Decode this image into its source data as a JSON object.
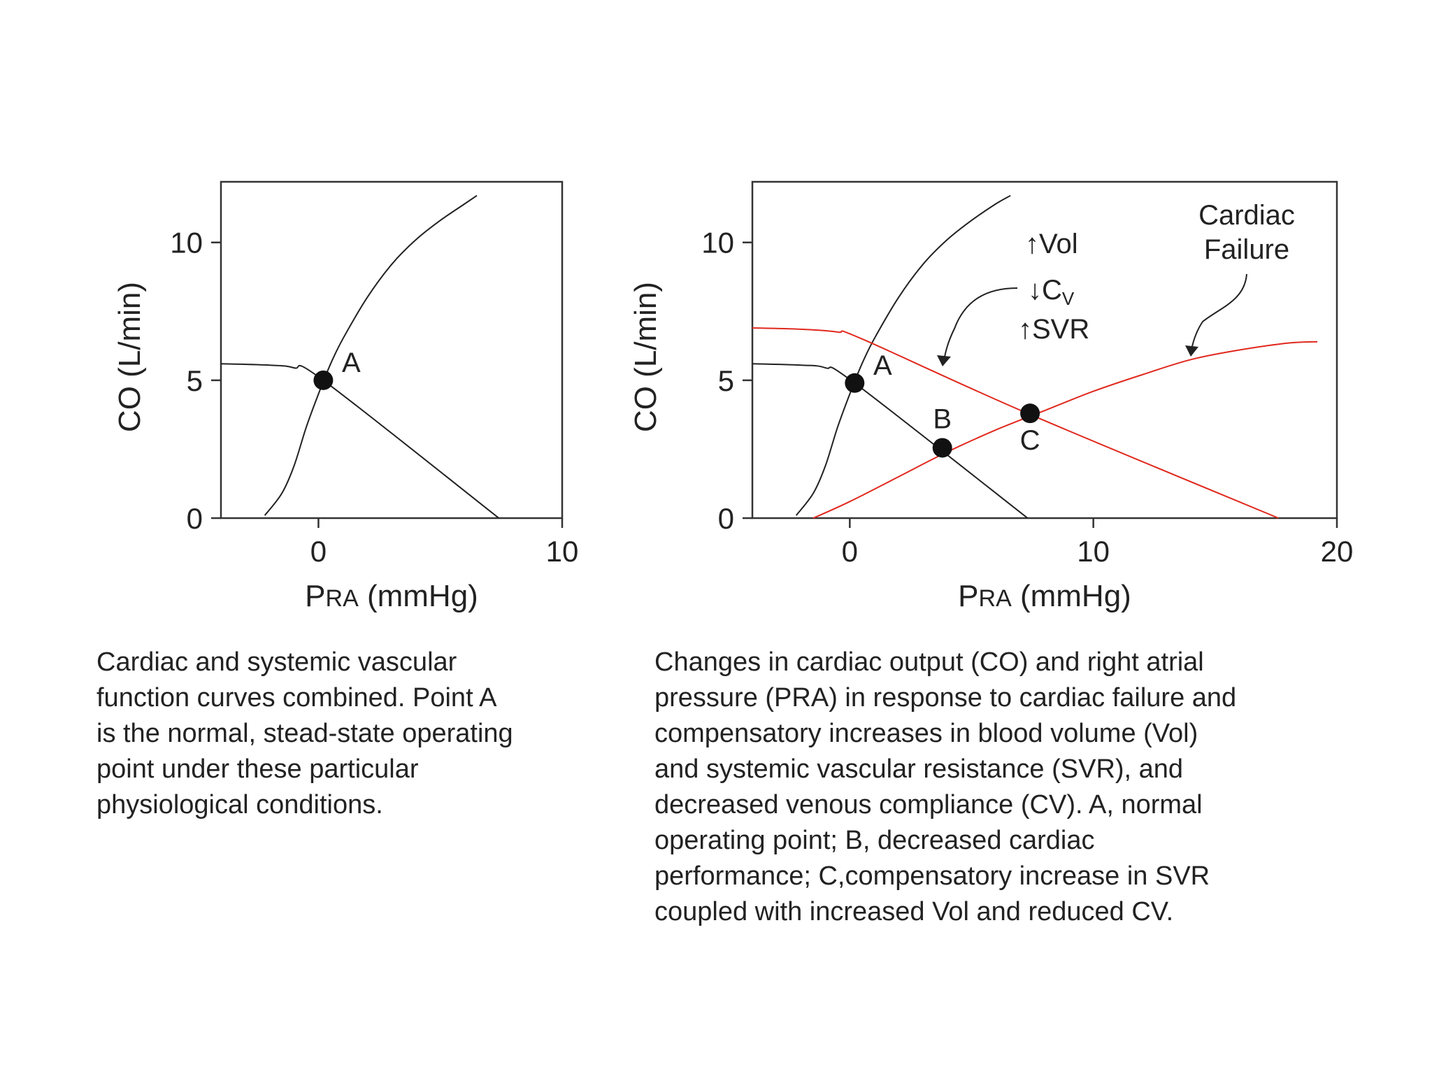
{
  "chart_data": [
    {
      "type": "line",
      "xlabel": "PRA (mmHg)",
      "ylabel": "CO (L/min)",
      "xlim": [
        -4,
        10
      ],
      "ylim": [
        0,
        12.2
      ],
      "xticks": [
        0,
        10
      ],
      "yticks": [
        0,
        5,
        10
      ],
      "grid": false,
      "series": [
        {
          "key": "cardiac",
          "color": "#222222",
          "x": [
            -2.2,
            -1.5,
            -1.0,
            -0.5,
            0.0,
            0.5,
            1.0,
            2.0,
            3.0,
            4.0,
            5.0,
            6.0,
            6.5
          ],
          "y": [
            0.1,
            0.9,
            1.9,
            3.3,
            4.5,
            5.6,
            6.5,
            8.0,
            9.2,
            10.1,
            10.8,
            11.4,
            11.7
          ]
        },
        {
          "key": "vascular",
          "color": "#222222",
          "x": [
            -4,
            -2,
            -1,
            0.2,
            7.4
          ],
          "y": [
            5.6,
            5.55,
            5.45,
            5.0,
            0
          ]
        }
      ],
      "points": [
        {
          "label": "A",
          "x": 0.2,
          "y": 5.0
        }
      ]
    },
    {
      "type": "line",
      "xlabel": "PRA (mmHg)",
      "ylabel": "CO (L/min)",
      "xlim": [
        -4,
        20
      ],
      "ylim": [
        0,
        12.2
      ],
      "xticks": [
        0,
        10,
        20
      ],
      "yticks": [
        0,
        5,
        10
      ],
      "grid": false,
      "series": [
        {
          "key": "cardiac-normal",
          "color": "#222222",
          "x": [
            -2.2,
            -1.5,
            -1.0,
            -0.5,
            0.0,
            0.5,
            1.0,
            2.0,
            3.0,
            4.0,
            5.0,
            6.0,
            6.6
          ],
          "y": [
            0.1,
            0.9,
            1.9,
            3.3,
            4.5,
            5.6,
            6.5,
            8.0,
            9.2,
            10.1,
            10.8,
            11.4,
            11.7
          ]
        },
        {
          "key": "vascular-normal",
          "color": "#222222",
          "x": [
            -4,
            -2,
            -1,
            0.2,
            7.3
          ],
          "y": [
            5.6,
            5.55,
            5.45,
            4.9,
            0
          ]
        },
        {
          "key": "cardiac-failure",
          "color": "#e0291e",
          "x": [
            -1.5,
            0,
            2,
            4,
            6,
            8,
            10,
            12,
            14,
            16,
            18,
            19.2
          ],
          "y": [
            0,
            0.6,
            1.5,
            2.4,
            3.2,
            3.9,
            4.6,
            5.2,
            5.75,
            6.1,
            6.35,
            6.4
          ]
        },
        {
          "key": "vascular-shifted",
          "color": "#e0291e",
          "x": [
            -4,
            -2,
            -0.5,
            0.5,
            7.3,
            17.6
          ],
          "y": [
            6.9,
            6.85,
            6.75,
            6.5,
            3.8,
            0
          ]
        }
      ],
      "points": [
        {
          "label": "A",
          "x": 0.2,
          "y": 4.9
        },
        {
          "label": "B",
          "x": 3.8,
          "y": 2.55
        },
        {
          "label": "C",
          "x": 7.4,
          "y": 3.8
        }
      ],
      "annotations": {
        "arrow_up": "↑",
        "arrow_down": "↓",
        "vol": "Vol",
        "cv_main": "C",
        "cv_sub": "V",
        "svr": "SVR",
        "failure_line1": "Cardiac",
        "failure_line2": "Failure"
      }
    }
  ],
  "captions": {
    "left": [
      "Cardiac and systemic vascular",
      "function curves combined.  Point A",
      "is the normal, stead-state operating",
      "point under these particular",
      "physiological conditions."
    ],
    "right": [
      "Changes in cardiac output (CO) and right atrial",
      "pressure (PRA) in response to cardiac failure and",
      "compensatory increases in blood volume (Vol)",
      "and systemic vascular resistance (SVR), and",
      "decreased venous compliance (CV).  A, normal",
      "operating point; B, decreased cardiac",
      "performance; C,compensatory increase in SVR",
      "coupled with increased Vol and reduced CV."
    ]
  }
}
